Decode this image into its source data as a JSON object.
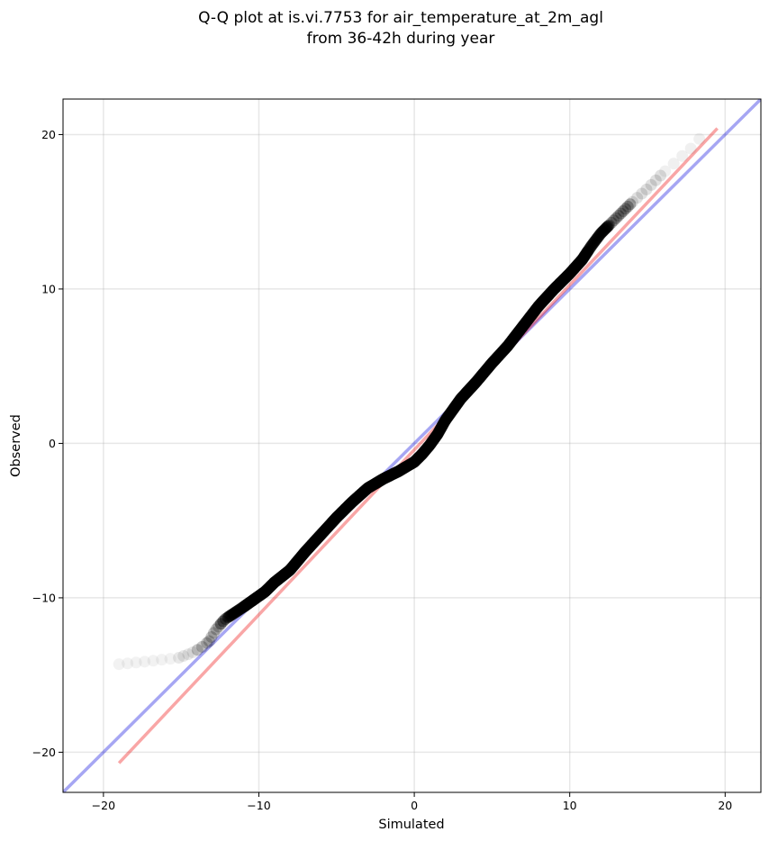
{
  "chart_data": {
    "type": "scatter",
    "title": [
      "Q-Q plot at is.vi.7753 for air_temperature_at_2m_agl",
      "from 36-42h during year"
    ],
    "xlabel": "Simulated",
    "ylabel": "Observed",
    "xlim": [
      -22.6,
      22.3
    ],
    "ylim": [
      -22.6,
      22.3
    ],
    "xticks": [
      -20,
      -10,
      0,
      10,
      20
    ],
    "yticks": [
      -20,
      -10,
      0,
      10,
      20
    ],
    "xtick_labels": [
      "−20",
      "−10",
      "0",
      "10",
      "20"
    ],
    "ytick_labels": [
      "−20",
      "−10",
      "0",
      "10",
      "20"
    ],
    "grid": true,
    "quantile_points_anchors": {
      "x": [
        -19.0,
        -18.0,
        -17.0,
        -16.2,
        -15.2,
        -14.4,
        -13.8,
        -13.2,
        -12.8,
        -12.2,
        -11.6,
        -11.0,
        -10.3,
        -9.6,
        -9.0,
        -8.0,
        -7.0,
        -6.0,
        -5.0,
        -4.0,
        -3.0,
        -2.0,
        -1.0,
        0.0,
        0.5,
        1.0,
        1.5,
        2.0,
        3.0,
        4.0,
        5.0,
        6.0,
        7.0,
        8.0,
        9.0,
        10.0,
        10.8,
        11.4,
        12.0,
        13.0,
        14.0,
        15.0,
        16.0,
        17.0,
        17.8,
        18.5
      ],
      "y": [
        -14.3,
        -14.2,
        -14.1,
        -14.0,
        -13.9,
        -13.6,
        -13.3,
        -12.8,
        -12.1,
        -11.4,
        -11.0,
        -10.6,
        -10.1,
        -9.6,
        -9.0,
        -8.2,
        -7.0,
        -5.9,
        -4.8,
        -3.8,
        -2.9,
        -2.3,
        -1.8,
        -1.2,
        -0.7,
        -0.1,
        0.6,
        1.5,
        2.9,
        4.0,
        5.2,
        6.3,
        7.6,
        8.9,
        10.0,
        11.0,
        11.9,
        12.8,
        13.6,
        14.6,
        15.6,
        16.5,
        17.5,
        18.4,
        19.1,
        19.9
      ]
    },
    "reference_lines": [
      {
        "color": "#0000dd",
        "opacity": 0.35,
        "x": [
          -22.6,
          22.3
        ],
        "y": [
          -22.6,
          22.3
        ]
      },
      {
        "color": "#ee0000",
        "opacity": 0.35,
        "x": [
          -19.0,
          19.5
        ],
        "y": [
          -20.7,
          20.4
        ]
      }
    ],
    "point_color": "#000000"
  }
}
